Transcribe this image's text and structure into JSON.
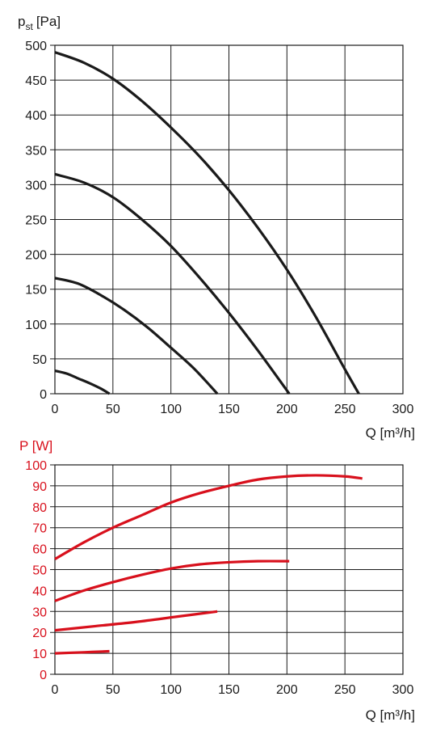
{
  "chart_data": [
    {
      "type": "line",
      "ylabel_main": "p",
      "ylabel_sub": "st",
      "ylabel_unit": "[Pa]",
      "xlabel": "Q [m³/h]",
      "xlim": [
        0,
        300
      ],
      "ylim": [
        0,
        500
      ],
      "xticks": [
        0,
        50,
        100,
        150,
        200,
        250,
        300
      ],
      "yticks": [
        0,
        50,
        100,
        150,
        200,
        250,
        300,
        350,
        400,
        450,
        500
      ],
      "grid": true,
      "line_color": "#1a1a1a",
      "series": [
        {
          "x": [
            0,
            10,
            20,
            30,
            40,
            47
          ],
          "y": [
            33,
            29,
            22,
            15,
            7,
            0
          ]
        },
        {
          "x": [
            0,
            20,
            40,
            60,
            80,
            100,
            120,
            140
          ],
          "y": [
            166,
            158,
            141,
            120,
            95,
            66,
            36,
            0
          ]
        },
        {
          "x": [
            0,
            25,
            50,
            75,
            100,
            125,
            150,
            175,
            202
          ],
          "y": [
            315,
            303,
            282,
            250,
            212,
            166,
            116,
            62,
            0
          ]
        },
        {
          "x": [
            0,
            25,
            50,
            75,
            100,
            125,
            150,
            175,
            200,
            225,
            250,
            262
          ],
          "y": [
            490,
            475,
            452,
            420,
            382,
            340,
            292,
            238,
            178,
            110,
            35,
            0
          ]
        }
      ]
    },
    {
      "type": "line",
      "ylabel": "P [W]",
      "xlabel": "Q [m³/h]",
      "xlim": [
        0,
        300
      ],
      "ylim": [
        0,
        100
      ],
      "xticks": [
        0,
        50,
        100,
        150,
        200,
        250,
        300
      ],
      "yticks": [
        0,
        10,
        20,
        30,
        40,
        50,
        60,
        70,
        80,
        90,
        100
      ],
      "grid": true,
      "line_color": "#d8101c",
      "label_color": "#d8101c",
      "series": [
        {
          "x": [
            0,
            25,
            47
          ],
          "y": [
            10,
            10.5,
            11
          ]
        },
        {
          "x": [
            0,
            35,
            70,
            105,
            140
          ],
          "y": [
            21,
            23,
            25,
            27.5,
            30
          ]
        },
        {
          "x": [
            0,
            25,
            50,
            75,
            100,
            125,
            150,
            175,
            202
          ],
          "y": [
            35,
            40,
            44,
            47.5,
            50.5,
            52.5,
            53.5,
            54,
            54
          ]
        },
        {
          "x": [
            0,
            25,
            50,
            75,
            100,
            125,
            150,
            175,
            200,
            225,
            250,
            265
          ],
          "y": [
            55,
            63,
            70,
            76,
            82,
            86.5,
            90,
            93,
            94.5,
            95,
            94.5,
            93.5
          ]
        }
      ]
    }
  ]
}
